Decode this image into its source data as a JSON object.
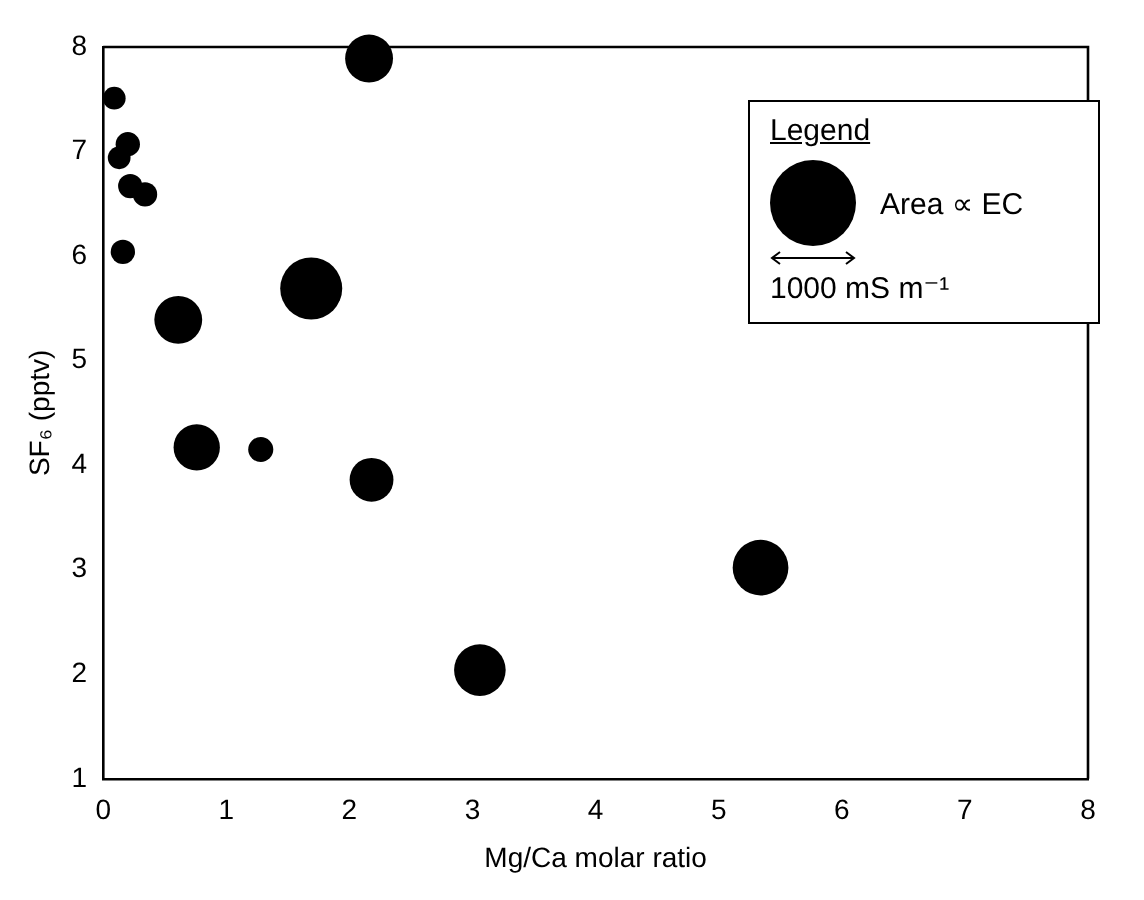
{
  "chart_data": {
    "type": "bubble",
    "xlabel": "Mg/Ca molar ratio",
    "ylabel": "SF₆ (pptv)",
    "legend_title": "Legend",
    "annotations": [
      "Area ∝ EC"
    ],
    "xlim": [
      0,
      8
    ],
    "xticks": [
      0,
      1,
      2,
      3,
      4,
      5,
      6,
      7,
      8
    ],
    "ylim": [
      1,
      8
    ],
    "yticks": [
      1,
      2,
      3,
      4,
      5,
      6,
      7,
      8
    ],
    "grid": false,
    "marker": "circle",
    "size_legend": [
      {
        "value": 1000,
        "label": "1000 mS m⁻¹"
      }
    ],
    "series": [
      {
        "color": "#000000",
        "x": [
          0.09,
          0.2,
          0.13,
          0.22,
          0.34,
          0.16,
          2.16,
          1.69,
          0.61,
          0.76,
          1.28,
          2.18,
          3.06,
          5.34
        ],
        "values": [
          7.51,
          7.07,
          6.94,
          6.67,
          6.59,
          6.04,
          7.89,
          5.69,
          5.39,
          4.17,
          4.15,
          3.86,
          2.04,
          3.02
        ],
        "sizes": [
          70,
          80,
          70,
          80,
          80,
          80,
          310,
          520,
          310,
          290,
          85,
          260,
          360,
          420
        ]
      }
    ]
  }
}
